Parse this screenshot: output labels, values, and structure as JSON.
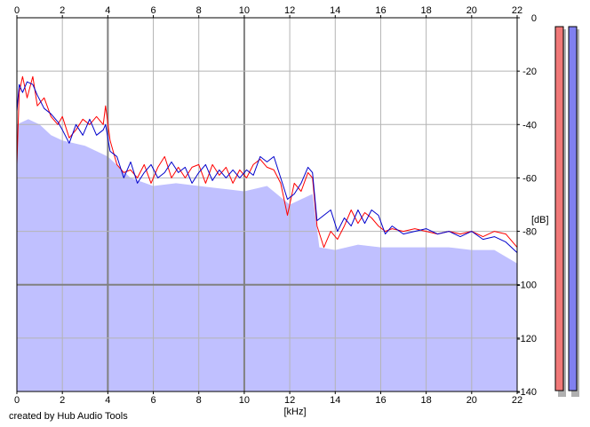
{
  "chart_data": {
    "type": "area",
    "x_unit_label": "[kHz]",
    "y_unit_label": "[dB]",
    "credit": "created by Hub Audio Tools",
    "xlim": [
      0,
      22
    ],
    "ylim": [
      -140,
      0
    ],
    "x_ticks": [
      0,
      2,
      4,
      6,
      8,
      10,
      12,
      14,
      16,
      18,
      20,
      22
    ],
    "y_ticks": [
      0,
      -20,
      -40,
      -60,
      -80,
      -100,
      -120,
      -140
    ],
    "grid": true,
    "plot_background": "#ffffff",
    "area_color": "#c0c0ff",
    "grid_color": "#b4b4b4",
    "major_grid_color": "#808080",
    "x_major_grid_values": [
      4,
      10
    ],
    "y_major_grid_values": [
      -100
    ],
    "series": [
      {
        "color": "#ff0000",
        "values": [
          {
            "x": 0.0,
            "y": -55
          },
          {
            "x": 0.1,
            "y": -28
          },
          {
            "x": 0.25,
            "y": -22
          },
          {
            "x": 0.45,
            "y": -30
          },
          {
            "x": 0.7,
            "y": -22
          },
          {
            "x": 0.9,
            "y": -33
          },
          {
            "x": 1.2,
            "y": -30
          },
          {
            "x": 1.5,
            "y": -37
          },
          {
            "x": 1.8,
            "y": -40
          },
          {
            "x": 2.0,
            "y": -37
          },
          {
            "x": 2.3,
            "y": -45
          },
          {
            "x": 2.6,
            "y": -42
          },
          {
            "x": 2.9,
            "y": -38
          },
          {
            "x": 3.2,
            "y": -40
          },
          {
            "x": 3.5,
            "y": -37
          },
          {
            "x": 3.8,
            "y": -40
          },
          {
            "x": 3.9,
            "y": -33
          },
          {
            "x": 4.1,
            "y": -46
          },
          {
            "x": 4.4,
            "y": -55
          },
          {
            "x": 4.7,
            "y": -58
          },
          {
            "x": 5.0,
            "y": -57
          },
          {
            "x": 5.3,
            "y": -60
          },
          {
            "x": 5.6,
            "y": -55
          },
          {
            "x": 5.9,
            "y": -62
          },
          {
            "x": 6.2,
            "y": -56
          },
          {
            "x": 6.5,
            "y": -52
          },
          {
            "x": 6.8,
            "y": -60
          },
          {
            "x": 7.1,
            "y": -56
          },
          {
            "x": 7.4,
            "y": -60
          },
          {
            "x": 7.7,
            "y": -56
          },
          {
            "x": 8.0,
            "y": -55
          },
          {
            "x": 8.3,
            "y": -62
          },
          {
            "x": 8.6,
            "y": -55
          },
          {
            "x": 8.9,
            "y": -59
          },
          {
            "x": 9.2,
            "y": -56
          },
          {
            "x": 9.5,
            "y": -62
          },
          {
            "x": 9.8,
            "y": -57
          },
          {
            "x": 10.1,
            "y": -60
          },
          {
            "x": 10.4,
            "y": -55
          },
          {
            "x": 10.7,
            "y": -53
          },
          {
            "x": 11.0,
            "y": -56
          },
          {
            "x": 11.3,
            "y": -57
          },
          {
            "x": 11.6,
            "y": -62
          },
          {
            "x": 11.9,
            "y": -74
          },
          {
            "x": 12.2,
            "y": -62
          },
          {
            "x": 12.5,
            "y": -65
          },
          {
            "x": 12.8,
            "y": -58
          },
          {
            "x": 13.0,
            "y": -60
          },
          {
            "x": 13.2,
            "y": -78
          },
          {
            "x": 13.5,
            "y": -86
          },
          {
            "x": 13.8,
            "y": -80
          },
          {
            "x": 14.1,
            "y": -83
          },
          {
            "x": 14.4,
            "y": -78
          },
          {
            "x": 14.7,
            "y": -72
          },
          {
            "x": 15.0,
            "y": -77
          },
          {
            "x": 15.3,
            "y": -73
          },
          {
            "x": 15.6,
            "y": -75
          },
          {
            "x": 15.9,
            "y": -78
          },
          {
            "x": 16.2,
            "y": -80
          },
          {
            "x": 16.5,
            "y": -79
          },
          {
            "x": 17.0,
            "y": -80
          },
          {
            "x": 17.5,
            "y": -79
          },
          {
            "x": 18.0,
            "y": -80
          },
          {
            "x": 18.5,
            "y": -81
          },
          {
            "x": 19.0,
            "y": -80
          },
          {
            "x": 19.5,
            "y": -81
          },
          {
            "x": 20.0,
            "y": -80
          },
          {
            "x": 20.5,
            "y": -82
          },
          {
            "x": 21.0,
            "y": -80
          },
          {
            "x": 21.5,
            "y": -81
          },
          {
            "x": 22.0,
            "y": -86
          }
        ]
      },
      {
        "color": "#0000cc",
        "values": [
          {
            "x": 0.0,
            "y": -35
          },
          {
            "x": 0.1,
            "y": -25
          },
          {
            "x": 0.25,
            "y": -28
          },
          {
            "x": 0.45,
            "y": -24
          },
          {
            "x": 0.7,
            "y": -25
          },
          {
            "x": 0.9,
            "y": -29
          },
          {
            "x": 1.2,
            "y": -34
          },
          {
            "x": 1.5,
            "y": -36
          },
          {
            "x": 1.8,
            "y": -39
          },
          {
            "x": 2.0,
            "y": -42
          },
          {
            "x": 2.3,
            "y": -47
          },
          {
            "x": 2.6,
            "y": -40
          },
          {
            "x": 2.9,
            "y": -44
          },
          {
            "x": 3.2,
            "y": -38
          },
          {
            "x": 3.5,
            "y": -44
          },
          {
            "x": 3.8,
            "y": -42
          },
          {
            "x": 3.9,
            "y": -40
          },
          {
            "x": 4.1,
            "y": -50
          },
          {
            "x": 4.4,
            "y": -52
          },
          {
            "x": 4.7,
            "y": -60
          },
          {
            "x": 5.0,
            "y": -54
          },
          {
            "x": 5.3,
            "y": -62
          },
          {
            "x": 5.6,
            "y": -58
          },
          {
            "x": 5.9,
            "y": -55
          },
          {
            "x": 6.2,
            "y": -60
          },
          {
            "x": 6.5,
            "y": -58
          },
          {
            "x": 6.8,
            "y": -54
          },
          {
            "x": 7.1,
            "y": -58
          },
          {
            "x": 7.4,
            "y": -56
          },
          {
            "x": 7.7,
            "y": -62
          },
          {
            "x": 8.0,
            "y": -58
          },
          {
            "x": 8.3,
            "y": -55
          },
          {
            "x": 8.6,
            "y": -61
          },
          {
            "x": 8.9,
            "y": -57
          },
          {
            "x": 9.2,
            "y": -60
          },
          {
            "x": 9.5,
            "y": -57
          },
          {
            "x": 9.8,
            "y": -60
          },
          {
            "x": 10.1,
            "y": -57
          },
          {
            "x": 10.4,
            "y": -59
          },
          {
            "x": 10.7,
            "y": -52
          },
          {
            "x": 11.0,
            "y": -54
          },
          {
            "x": 11.3,
            "y": -52
          },
          {
            "x": 11.6,
            "y": -60
          },
          {
            "x": 11.9,
            "y": -68
          },
          {
            "x": 12.2,
            "y": -66
          },
          {
            "x": 12.5,
            "y": -62
          },
          {
            "x": 12.8,
            "y": -56
          },
          {
            "x": 13.0,
            "y": -58
          },
          {
            "x": 13.2,
            "y": -76
          },
          {
            "x": 13.5,
            "y": -74
          },
          {
            "x": 13.8,
            "y": -72
          },
          {
            "x": 14.1,
            "y": -80
          },
          {
            "x": 14.4,
            "y": -75
          },
          {
            "x": 14.7,
            "y": -78
          },
          {
            "x": 15.0,
            "y": -72
          },
          {
            "x": 15.3,
            "y": -77
          },
          {
            "x": 15.6,
            "y": -72
          },
          {
            "x": 15.9,
            "y": -74
          },
          {
            "x": 16.2,
            "y": -81
          },
          {
            "x": 16.5,
            "y": -78
          },
          {
            "x": 17.0,
            "y": -81
          },
          {
            "x": 17.5,
            "y": -80
          },
          {
            "x": 18.0,
            "y": -79
          },
          {
            "x": 18.5,
            "y": -81
          },
          {
            "x": 19.0,
            "y": -80
          },
          {
            "x": 19.5,
            "y": -82
          },
          {
            "x": 20.0,
            "y": -80
          },
          {
            "x": 20.5,
            "y": -83
          },
          {
            "x": 21.0,
            "y": -82
          },
          {
            "x": 21.5,
            "y": -84
          },
          {
            "x": 22.0,
            "y": -88
          }
        ]
      }
    ],
    "envelope_floor": [
      {
        "x": 0.0,
        "y": -40
      },
      {
        "x": 0.5,
        "y": -38
      },
      {
        "x": 1.0,
        "y": -40
      },
      {
        "x": 1.5,
        "y": -44
      },
      {
        "x": 2.0,
        "y": -46
      },
      {
        "x": 3.0,
        "y": -48
      },
      {
        "x": 4.0,
        "y": -52
      },
      {
        "x": 5.0,
        "y": -60
      },
      {
        "x": 6.0,
        "y": -63
      },
      {
        "x": 7.0,
        "y": -62
      },
      {
        "x": 8.0,
        "y": -63
      },
      {
        "x": 9.0,
        "y": -64
      },
      {
        "x": 10.0,
        "y": -65
      },
      {
        "x": 11.0,
        "y": -63
      },
      {
        "x": 12.0,
        "y": -70
      },
      {
        "x": 12.5,
        "y": -68
      },
      {
        "x": 13.0,
        "y": -66
      },
      {
        "x": 13.3,
        "y": -86
      },
      {
        "x": 14.0,
        "y": -87
      },
      {
        "x": 15.0,
        "y": -85
      },
      {
        "x": 16.0,
        "y": -86
      },
      {
        "x": 17.0,
        "y": -86
      },
      {
        "x": 18.0,
        "y": -86
      },
      {
        "x": 19.0,
        "y": -86
      },
      {
        "x": 20.0,
        "y": -87
      },
      {
        "x": 21.0,
        "y": -87
      },
      {
        "x": 22.0,
        "y": -92
      }
    ],
    "level_meters": [
      {
        "channel": "left",
        "color": "#f07878",
        "level_fraction": 1.0
      },
      {
        "channel": "right",
        "color": "#8080f0",
        "level_fraction": 1.0
      }
    ]
  }
}
